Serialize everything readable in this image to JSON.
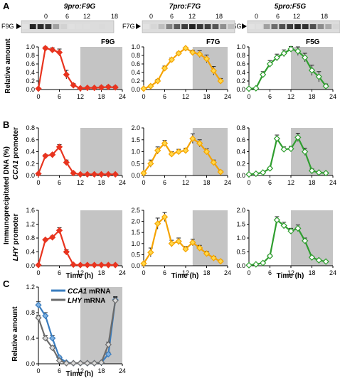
{
  "panel_letters": [
    "A",
    "B",
    "C"
  ],
  "shared": {
    "ylabel_A": "Relative  amount",
    "ylabel_B_outer": "Immunoprecipitated DNA (%)",
    "xlabel": "Time (h)",
    "x_ticks": [
      0,
      6,
      12,
      18,
      24
    ],
    "blot_ticks": [
      "0",
      "6",
      "12",
      "18"
    ],
    "colors": {
      "red": "#e8341f",
      "orange": "#f5a300",
      "green": "#2f9e2f",
      "blue": "#3a7dbf",
      "gray": "#6b6b6b",
      "dark_shade": "#c4c4c4"
    }
  },
  "columns": [
    {
      "genotype": "9pro:F9G",
      "blot_label": "F9G",
      "box_label": "F9G",
      "color": "red"
    },
    {
      "genotype": "7pro:F7G",
      "blot_label": "F7G",
      "box_label": "F7G",
      "color": "orange"
    },
    {
      "genotype": "5pro:F5G",
      "blot_label": "F5G",
      "box_label": "F5G",
      "color": "green"
    }
  ],
  "row_labels": {
    "cca1": {
      "italic": "CCA1",
      "rest": " promoter"
    },
    "lhy": {
      "italic": "LHY",
      "rest": " promoter"
    }
  },
  "legend_C": [
    {
      "italic": "CCA1",
      "rest": " mRNA"
    },
    {
      "italic": "LHY",
      "rest": " mRNA"
    }
  ],
  "chart_data": [
    {
      "type": "line",
      "panel": "A",
      "title": "9pro:F9G",
      "ylabel": "Relative  amount",
      "xlabel": "",
      "ylim": [
        0,
        1.0
      ],
      "yticks": [
        0.0,
        0.2,
        0.4,
        0.6,
        0.8,
        1.0
      ],
      "dark_period": [
        12,
        24
      ],
      "series": [
        {
          "x": [
            0,
            2,
            4,
            6,
            8,
            10,
            12,
            14,
            16,
            18,
            20,
            22
          ],
          "y": [
            0.02,
            0.97,
            0.93,
            0.87,
            0.35,
            0.1,
            0.03,
            0.04,
            0.04,
            0.05,
            0.06,
            0.05
          ],
          "err": [
            0.02,
            0.03,
            0.05,
            0.08,
            0.1,
            0.04,
            0.02,
            0.02,
            0.02,
            0.03,
            0.03,
            0.03
          ]
        }
      ]
    },
    {
      "type": "line",
      "panel": "A",
      "title": "7pro:F7G",
      "ylabel": "",
      "xlabel": "",
      "ylim": [
        0,
        1.0
      ],
      "yticks": [
        0.0,
        0.2,
        0.4,
        0.6,
        0.8,
        1.0
      ],
      "dark_period": [
        14,
        24
      ],
      "series": [
        {
          "x": [
            0,
            2,
            4,
            6,
            8,
            10,
            12,
            14,
            16,
            18,
            20,
            22
          ],
          "y": [
            0.02,
            0.08,
            0.2,
            0.5,
            0.7,
            0.85,
            0.97,
            0.87,
            0.83,
            0.72,
            0.44,
            0.2
          ],
          "err": [
            0.01,
            0.02,
            0.04,
            0.05,
            0.04,
            0.03,
            0.02,
            0.05,
            0.08,
            0.09,
            0.1,
            0.06
          ]
        }
      ]
    },
    {
      "type": "line",
      "panel": "A",
      "title": "5pro:F5G",
      "ylabel": "",
      "xlabel": "",
      "ylim": [
        0,
        1.0
      ],
      "yticks": [
        0.0,
        0.2,
        0.4,
        0.6,
        0.8,
        1.0
      ],
      "dark_period": [
        12,
        24
      ],
      "series": [
        {
          "x": [
            0,
            2,
            4,
            6,
            8,
            10,
            12,
            14,
            16,
            18,
            20,
            22
          ],
          "y": [
            0.02,
            0.03,
            0.35,
            0.6,
            0.75,
            0.85,
            0.95,
            0.9,
            0.75,
            0.45,
            0.3,
            0.08
          ],
          "err": [
            0.01,
            0.02,
            0.07,
            0.08,
            0.08,
            0.08,
            0.06,
            0.1,
            0.1,
            0.12,
            0.12,
            0.05
          ]
        }
      ]
    },
    {
      "type": "line",
      "panel": "B",
      "row": "CCA1 promoter",
      "ylabel": "",
      "xlabel": "",
      "ylim": [
        0,
        0.8
      ],
      "yticks": [
        0.0,
        0.2,
        0.4,
        0.6,
        0.8
      ],
      "dark_period": [
        12,
        24
      ],
      "series": [
        {
          "x": [
            0,
            2,
            4,
            6,
            8,
            10,
            12,
            14,
            16,
            18,
            20,
            22
          ],
          "y": [
            0.03,
            0.33,
            0.35,
            0.48,
            0.22,
            0.04,
            0.02,
            0.02,
            0.02,
            0.02,
            0.02,
            0.02
          ],
          "err": [
            0.01,
            0.02,
            0.02,
            0.04,
            0.04,
            0.02,
            0.01,
            0.01,
            0.01,
            0.01,
            0.01,
            0.01
          ]
        }
      ]
    },
    {
      "type": "line",
      "panel": "B",
      "row": "CCA1 promoter",
      "ylabel": "",
      "xlabel": "",
      "ylim": [
        0,
        2.0
      ],
      "yticks": [
        0.0,
        0.5,
        1.0,
        1.5,
        2.0
      ],
      "dark_period": [
        14,
        24
      ],
      "series": [
        {
          "x": [
            0,
            2,
            4,
            6,
            8,
            10,
            12,
            14,
            16,
            18,
            20,
            22
          ],
          "y": [
            0.1,
            0.5,
            1.05,
            1.35,
            0.9,
            1.0,
            1.05,
            1.55,
            1.35,
            1.0,
            0.55,
            0.15
          ],
          "err": [
            0.04,
            0.15,
            0.15,
            0.12,
            0.1,
            0.1,
            0.1,
            0.2,
            0.15,
            0.12,
            0.1,
            0.05
          ]
        }
      ]
    },
    {
      "type": "line",
      "panel": "B",
      "row": "CCA1 promoter",
      "ylabel": "",
      "xlabel": "",
      "ylim": [
        0,
        0.8
      ],
      "yticks": [
        0.0,
        0.2,
        0.4,
        0.6,
        0.8
      ],
      "dark_period": [
        12,
        24
      ],
      "series": [
        {
          "x": [
            0,
            2,
            4,
            6,
            8,
            10,
            12,
            14,
            16,
            18,
            20,
            22
          ],
          "y": [
            0.02,
            0.03,
            0.05,
            0.12,
            0.62,
            0.44,
            0.45,
            0.64,
            0.4,
            0.08,
            0.05,
            0.04
          ],
          "err": [
            0.01,
            0.01,
            0.01,
            0.02,
            0.06,
            0.04,
            0.04,
            0.07,
            0.06,
            0.03,
            0.01,
            0.01
          ]
        }
      ]
    },
    {
      "type": "line",
      "panel": "B",
      "row": "LHY promoter",
      "ylabel": "",
      "xlabel": "Time (h)",
      "ylim": [
        0,
        1.6
      ],
      "yticks": [
        0.0,
        0.4,
        0.8,
        1.2,
        1.6
      ],
      "dark_period": [
        12,
        24
      ],
      "series": [
        {
          "x": [
            0,
            2,
            4,
            6,
            8,
            10,
            12,
            14,
            16,
            18,
            20,
            22
          ],
          "y": [
            0.02,
            0.75,
            0.82,
            1.02,
            0.4,
            0.03,
            0.02,
            0.02,
            0.02,
            0.02,
            0.02,
            0.02
          ],
          "err": [
            0.01,
            0.03,
            0.04,
            0.08,
            0.06,
            0.02,
            0.01,
            0.01,
            0.01,
            0.01,
            0.01,
            0.01
          ]
        }
      ]
    },
    {
      "type": "line",
      "panel": "B",
      "row": "LHY promoter",
      "ylabel": "",
      "xlabel": "Time (h)",
      "ylim": [
        0,
        2.5
      ],
      "yticks": [
        0.0,
        0.5,
        1.0,
        1.5,
        2.0,
        2.5
      ],
      "dark_period": [
        14,
        24
      ],
      "series": [
        {
          "x": [
            0,
            2,
            4,
            6,
            8,
            10,
            12,
            14,
            16,
            18,
            20,
            22
          ],
          "y": [
            0.1,
            0.6,
            1.9,
            2.2,
            1.0,
            1.1,
            0.75,
            1.05,
            0.8,
            0.55,
            0.35,
            0.2
          ],
          "err": [
            0.04,
            0.2,
            0.25,
            0.2,
            0.15,
            0.15,
            0.12,
            0.15,
            0.12,
            0.1,
            0.08,
            0.05
          ]
        }
      ]
    },
    {
      "type": "line",
      "panel": "B",
      "row": "LHY promoter",
      "ylabel": "",
      "xlabel": "Time (h)",
      "ylim": [
        0,
        2.0
      ],
      "yticks": [
        0.0,
        0.5,
        1.0,
        1.5,
        2.0
      ],
      "dark_period": [
        12,
        24
      ],
      "series": [
        {
          "x": [
            0,
            2,
            4,
            6,
            8,
            10,
            12,
            14,
            16,
            18,
            20,
            22
          ],
          "y": [
            0.02,
            0.05,
            0.1,
            0.35,
            1.65,
            1.45,
            1.25,
            1.35,
            0.9,
            0.3,
            0.2,
            0.15
          ],
          "err": [
            0.01,
            0.02,
            0.03,
            0.05,
            0.12,
            0.12,
            0.1,
            0.12,
            0.1,
            0.05,
            0.04,
            0.03
          ]
        }
      ]
    },
    {
      "type": "line",
      "panel": "C",
      "ylabel": "Relative amount",
      "xlabel": "Time (h)",
      "ylim": [
        0,
        1.2
      ],
      "yticks": [
        0.0,
        0.4,
        0.8,
        1.2
      ],
      "dark_period": [
        12,
        24
      ],
      "series": [
        {
          "name": "CCA1 mRNA",
          "color": "blue",
          "x": [
            0,
            2,
            4,
            6,
            8,
            10,
            12,
            14,
            16,
            18,
            20,
            22
          ],
          "y": [
            0.92,
            0.75,
            0.4,
            0.1,
            0.02,
            0.01,
            0.01,
            0.01,
            0.01,
            0.02,
            0.15,
            1.0
          ],
          "err": [
            0.05,
            0.05,
            0.04,
            0.02,
            0.01,
            0.01,
            0.01,
            0.01,
            0.01,
            0.01,
            0.03,
            0.05
          ]
        },
        {
          "name": "LHY mRNA",
          "color": "gray",
          "x": [
            0,
            2,
            4,
            6,
            8,
            10,
            12,
            14,
            16,
            18,
            20,
            22
          ],
          "y": [
            0.72,
            0.4,
            0.25,
            0.05,
            0.01,
            0.01,
            0.01,
            0.01,
            0.01,
            0.02,
            0.3,
            0.99
          ],
          "err": [
            0.04,
            0.04,
            0.03,
            0.02,
            0.01,
            0.01,
            0.01,
            0.01,
            0.01,
            0.01,
            0.04,
            0.05
          ]
        }
      ]
    }
  ]
}
